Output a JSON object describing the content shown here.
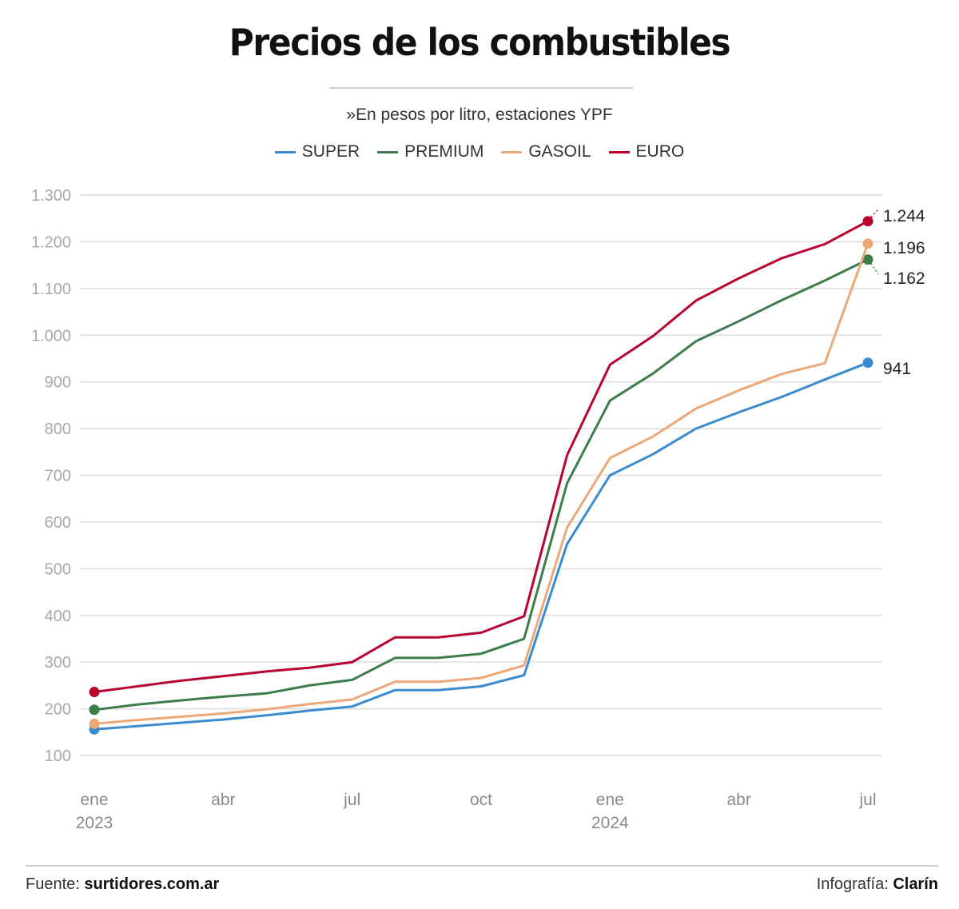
{
  "header": {
    "title": "Precios de los combustibles",
    "subtitle": "»En pesos por litro, estaciones YPF"
  },
  "footer": {
    "source_label": "Fuente:",
    "source_value": "surtidores.com.ar",
    "credit_label": "Infografía:",
    "credit_value": "Clarín"
  },
  "chart_data": {
    "type": "line",
    "title": "Precios de los combustibles",
    "subtitle": "»En pesos por litro, estaciones YPF",
    "xlabel": "",
    "ylabel": "",
    "ylim": [
      100,
      1300
    ],
    "yticks": [
      100,
      200,
      300,
      400,
      500,
      600,
      700,
      800,
      900,
      1000,
      1100,
      1200,
      1300
    ],
    "ytick_labels": [
      "100",
      "200",
      "300",
      "400",
      "500",
      "600",
      "700",
      "800",
      "900",
      "1.000",
      "1.100",
      "1.200",
      "1.300"
    ],
    "grid": true,
    "legend_position": "top-center",
    "x": [
      "2023-01",
      "2023-02",
      "2023-03",
      "2023-04",
      "2023-05",
      "2023-06",
      "2023-07",
      "2023-08",
      "2023-09",
      "2023-10",
      "2023-11",
      "2023-12",
      "2024-01",
      "2024-02",
      "2024-03",
      "2024-04",
      "2024-05",
      "2024-06",
      "2024-07"
    ],
    "xticks": [
      {
        "index": 0,
        "label": "ene",
        "sublabel": "2023"
      },
      {
        "index": 3,
        "label": "abr",
        "sublabel": ""
      },
      {
        "index": 6,
        "label": "jul",
        "sublabel": ""
      },
      {
        "index": 9,
        "label": "oct",
        "sublabel": ""
      },
      {
        "index": 12,
        "label": "ene",
        "sublabel": "2024"
      },
      {
        "index": 15,
        "label": "abr",
        "sublabel": ""
      },
      {
        "index": 18,
        "label": "jul",
        "sublabel": ""
      }
    ],
    "series": [
      {
        "name": "SUPER",
        "color": "#3a8bcf",
        "end_label": "941",
        "values": [
          156,
          163,
          170,
          177,
          186,
          196,
          205,
          240,
          240,
          248,
          272,
          553,
          700,
          745,
          800,
          835,
          868,
          905,
          941
        ]
      },
      {
        "name": "PREMIUM",
        "color": "#3c7d4a",
        "end_label": "1.162",
        "values": [
          198,
          209,
          218,
          226,
          233,
          250,
          262,
          309,
          309,
          318,
          350,
          683,
          860,
          918,
          987,
          1030,
          1075,
          1117,
          1162
        ]
      },
      {
        "name": "GASOIL",
        "color": "#eda877",
        "end_label": "1.196",
        "values": [
          168,
          176,
          183,
          190,
          199,
          210,
          220,
          258,
          258,
          266,
          293,
          588,
          737,
          783,
          843,
          882,
          917,
          940,
          1196
        ]
      },
      {
        "name": "EURO",
        "color": "#b8042f",
        "end_label": "1.244",
        "values": [
          236,
          248,
          260,
          270,
          280,
          288,
          300,
          353,
          353,
          363,
          398,
          743,
          937,
          998,
          1074,
          1122,
          1165,
          1195,
          1244
        ]
      }
    ]
  }
}
